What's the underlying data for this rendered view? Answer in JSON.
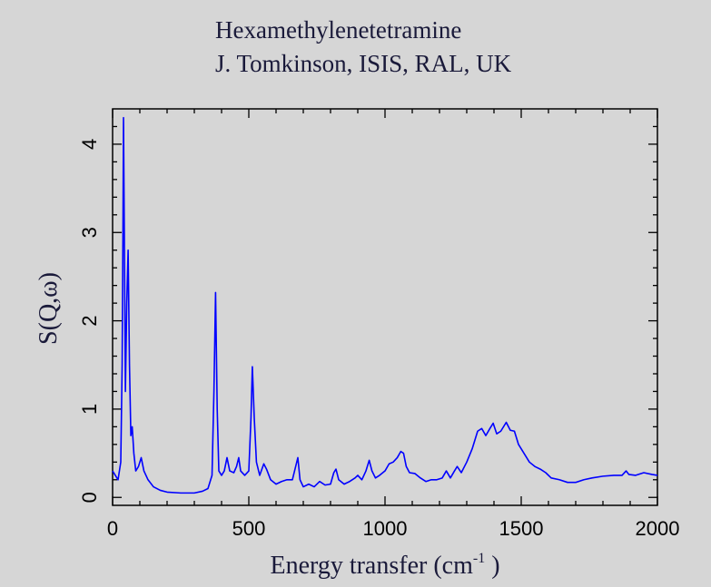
{
  "chart_data": {
    "type": "line",
    "title": "Hexamethylenetetramine",
    "subtitle": "J. Tomkinson, ISIS, RAL, UK",
    "x_label": {
      "text": "Energy transfer (cm",
      "sup": "-1",
      "end": " )"
    },
    "y_label": "S(Q,ω)",
    "xlim": [
      0,
      2000
    ],
    "xticks": [
      0,
      500,
      1000,
      1500,
      2000
    ],
    "ylim": [
      -0.09,
      4.4
    ],
    "yticks": [
      0,
      1,
      2,
      3,
      4
    ],
    "grid": false,
    "series": [
      {
        "color": "#0000ff",
        "x": [
          0,
          10,
          20,
          30,
          35,
          38,
          40,
          43,
          47,
          52,
          57,
          62,
          67,
          72,
          78,
          85,
          95,
          105,
          115,
          130,
          150,
          175,
          200,
          250,
          300,
          330,
          350,
          365,
          372,
          378,
          384,
          390,
          400,
          410,
          420,
          430,
          445,
          455,
          463,
          470,
          485,
          500,
          508,
          513,
          520,
          528,
          540,
          555,
          565,
          580,
          600,
          620,
          640,
          660,
          672,
          680,
          688,
          700,
          720,
          740,
          760,
          780,
          800,
          812,
          820,
          830,
          850,
          870,
          890,
          900,
          915,
          930,
          942,
          952,
          965,
          980,
          1000,
          1015,
          1030,
          1045,
          1058,
          1068,
          1078,
          1090,
          1110,
          1130,
          1150,
          1170,
          1190,
          1210,
          1225,
          1240,
          1255,
          1265,
          1280,
          1300,
          1320,
          1340,
          1355,
          1370,
          1385,
          1397,
          1410,
          1425,
          1445,
          1460,
          1475,
          1490,
          1510,
          1530,
          1550,
          1570,
          1590,
          1610,
          1640,
          1670,
          1700,
          1730,
          1760,
          1800,
          1840,
          1870,
          1885,
          1895,
          1920,
          1950,
          1980,
          2000
        ],
        "values": [
          0.3,
          0.25,
          0.2,
          0.4,
          1.5,
          3.0,
          4.3,
          3.0,
          1.2,
          2.2,
          2.8,
          1.5,
          0.7,
          0.8,
          0.5,
          0.3,
          0.35,
          0.45,
          0.3,
          0.2,
          0.12,
          0.08,
          0.06,
          0.05,
          0.05,
          0.07,
          0.1,
          0.25,
          1.2,
          2.32,
          1.0,
          0.3,
          0.25,
          0.3,
          0.45,
          0.3,
          0.28,
          0.35,
          0.45,
          0.3,
          0.25,
          0.3,
          0.9,
          1.48,
          0.9,
          0.4,
          0.25,
          0.38,
          0.32,
          0.2,
          0.15,
          0.18,
          0.2,
          0.2,
          0.35,
          0.45,
          0.2,
          0.12,
          0.15,
          0.12,
          0.18,
          0.14,
          0.15,
          0.28,
          0.32,
          0.2,
          0.15,
          0.18,
          0.22,
          0.25,
          0.2,
          0.3,
          0.42,
          0.3,
          0.22,
          0.25,
          0.3,
          0.38,
          0.4,
          0.45,
          0.52,
          0.5,
          0.35,
          0.28,
          0.27,
          0.22,
          0.18,
          0.2,
          0.2,
          0.22,
          0.3,
          0.22,
          0.3,
          0.35,
          0.28,
          0.4,
          0.55,
          0.75,
          0.78,
          0.7,
          0.78,
          0.84,
          0.72,
          0.75,
          0.85,
          0.76,
          0.75,
          0.6,
          0.5,
          0.4,
          0.35,
          0.32,
          0.28,
          0.22,
          0.2,
          0.17,
          0.17,
          0.2,
          0.22,
          0.24,
          0.25,
          0.25,
          0.3,
          0.26,
          0.25,
          0.28,
          0.26,
          0.25
        ]
      }
    ]
  }
}
